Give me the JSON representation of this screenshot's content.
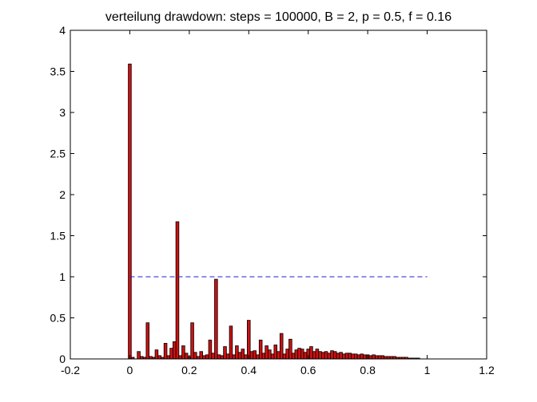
{
  "chart_data": {
    "type": "bar",
    "title": "verteilung drawdown: steps = 100000, B = 2, p = 0.5, f = 0.16",
    "xlabel": "",
    "ylabel": "",
    "xlim": [
      -0.2,
      1.2
    ],
    "ylim": [
      0,
      4
    ],
    "xticks": [
      -0.2,
      0,
      0.2,
      0.4,
      0.6,
      0.8,
      1,
      1.2
    ],
    "xtick_labels": [
      "-0.2",
      "0",
      "0.2",
      "0.4",
      "0.6",
      "0.8",
      "1",
      "1.2"
    ],
    "yticks": [
      0,
      0.5,
      1,
      1.5,
      2,
      2.5,
      3,
      3.5,
      4
    ],
    "ytick_labels": [
      "0",
      "0.5",
      "1",
      "1.5",
      "2",
      "2.5",
      "3",
      "3.5",
      "4"
    ],
    "grid": false,
    "bar_width": 0.01,
    "colors": {
      "bar_fill": "#cc1111",
      "bar_edge": "#000000",
      "reference_line": "#2222cc"
    },
    "reference_line": {
      "y": 1,
      "x_start": 0,
      "x_end": 1,
      "style": "dashed"
    },
    "bars": [
      {
        "x": 0.0,
        "y": 3.59
      },
      {
        "x": 0.01,
        "y": 0.02
      },
      {
        "x": 0.02,
        "y": 0.0
      },
      {
        "x": 0.03,
        "y": 0.09
      },
      {
        "x": 0.04,
        "y": 0.03
      },
      {
        "x": 0.05,
        "y": 0.02
      },
      {
        "x": 0.06,
        "y": 0.44
      },
      {
        "x": 0.07,
        "y": 0.03
      },
      {
        "x": 0.08,
        "y": 0.02
      },
      {
        "x": 0.09,
        "y": 0.11
      },
      {
        "x": 0.1,
        "y": 0.04
      },
      {
        "x": 0.11,
        "y": 0.02
      },
      {
        "x": 0.12,
        "y": 0.19
      },
      {
        "x": 0.13,
        "y": 0.04
      },
      {
        "x": 0.14,
        "y": 0.13
      },
      {
        "x": 0.15,
        "y": 0.21
      },
      {
        "x": 0.16,
        "y": 1.67
      },
      {
        "x": 0.17,
        "y": 0.04
      },
      {
        "x": 0.18,
        "y": 0.16
      },
      {
        "x": 0.19,
        "y": 0.07
      },
      {
        "x": 0.2,
        "y": 0.03
      },
      {
        "x": 0.21,
        "y": 0.44
      },
      {
        "x": 0.22,
        "y": 0.08
      },
      {
        "x": 0.23,
        "y": 0.03
      },
      {
        "x": 0.24,
        "y": 0.09
      },
      {
        "x": 0.25,
        "y": 0.04
      },
      {
        "x": 0.26,
        "y": 0.05
      },
      {
        "x": 0.27,
        "y": 0.23
      },
      {
        "x": 0.28,
        "y": 0.07
      },
      {
        "x": 0.29,
        "y": 0.97
      },
      {
        "x": 0.3,
        "y": 0.05
      },
      {
        "x": 0.31,
        "y": 0.04
      },
      {
        "x": 0.32,
        "y": 0.15
      },
      {
        "x": 0.33,
        "y": 0.06
      },
      {
        "x": 0.34,
        "y": 0.4
      },
      {
        "x": 0.35,
        "y": 0.05
      },
      {
        "x": 0.36,
        "y": 0.16
      },
      {
        "x": 0.37,
        "y": 0.08
      },
      {
        "x": 0.38,
        "y": 0.12
      },
      {
        "x": 0.39,
        "y": 0.05
      },
      {
        "x": 0.4,
        "y": 0.47
      },
      {
        "x": 0.41,
        "y": 0.09
      },
      {
        "x": 0.42,
        "y": 0.1
      },
      {
        "x": 0.43,
        "y": 0.05
      },
      {
        "x": 0.44,
        "y": 0.23
      },
      {
        "x": 0.45,
        "y": 0.07
      },
      {
        "x": 0.46,
        "y": 0.16
      },
      {
        "x": 0.47,
        "y": 0.11
      },
      {
        "x": 0.48,
        "y": 0.06
      },
      {
        "x": 0.49,
        "y": 0.17
      },
      {
        "x": 0.5,
        "y": 0.09
      },
      {
        "x": 0.51,
        "y": 0.31
      },
      {
        "x": 0.52,
        "y": 0.06
      },
      {
        "x": 0.53,
        "y": 0.12
      },
      {
        "x": 0.54,
        "y": 0.24
      },
      {
        "x": 0.55,
        "y": 0.07
      },
      {
        "x": 0.56,
        "y": 0.11
      },
      {
        "x": 0.57,
        "y": 0.13
      },
      {
        "x": 0.58,
        "y": 0.12
      },
      {
        "x": 0.59,
        "y": 0.08
      },
      {
        "x": 0.6,
        "y": 0.12
      },
      {
        "x": 0.61,
        "y": 0.15
      },
      {
        "x": 0.62,
        "y": 0.09
      },
      {
        "x": 0.63,
        "y": 0.12
      },
      {
        "x": 0.64,
        "y": 0.09
      },
      {
        "x": 0.65,
        "y": 0.08
      },
      {
        "x": 0.66,
        "y": 0.09
      },
      {
        "x": 0.67,
        "y": 0.07
      },
      {
        "x": 0.68,
        "y": 0.1
      },
      {
        "x": 0.69,
        "y": 0.09
      },
      {
        "x": 0.7,
        "y": 0.07
      },
      {
        "x": 0.71,
        "y": 0.08
      },
      {
        "x": 0.72,
        "y": 0.06
      },
      {
        "x": 0.73,
        "y": 0.07
      },
      {
        "x": 0.74,
        "y": 0.07
      },
      {
        "x": 0.75,
        "y": 0.06
      },
      {
        "x": 0.76,
        "y": 0.06
      },
      {
        "x": 0.77,
        "y": 0.05
      },
      {
        "x": 0.78,
        "y": 0.06
      },
      {
        "x": 0.79,
        "y": 0.05
      },
      {
        "x": 0.8,
        "y": 0.05
      },
      {
        "x": 0.81,
        "y": 0.04
      },
      {
        "x": 0.82,
        "y": 0.05
      },
      {
        "x": 0.83,
        "y": 0.04
      },
      {
        "x": 0.84,
        "y": 0.04
      },
      {
        "x": 0.85,
        "y": 0.04
      },
      {
        "x": 0.86,
        "y": 0.03
      },
      {
        "x": 0.87,
        "y": 0.03
      },
      {
        "x": 0.88,
        "y": 0.03
      },
      {
        "x": 0.89,
        "y": 0.03
      },
      {
        "x": 0.9,
        "y": 0.02
      },
      {
        "x": 0.91,
        "y": 0.02
      },
      {
        "x": 0.92,
        "y": 0.02
      },
      {
        "x": 0.93,
        "y": 0.02
      },
      {
        "x": 0.94,
        "y": 0.01
      },
      {
        "x": 0.95,
        "y": 0.01
      },
      {
        "x": 0.96,
        "y": 0.01
      },
      {
        "x": 0.97,
        "y": 0.01
      }
    ]
  }
}
